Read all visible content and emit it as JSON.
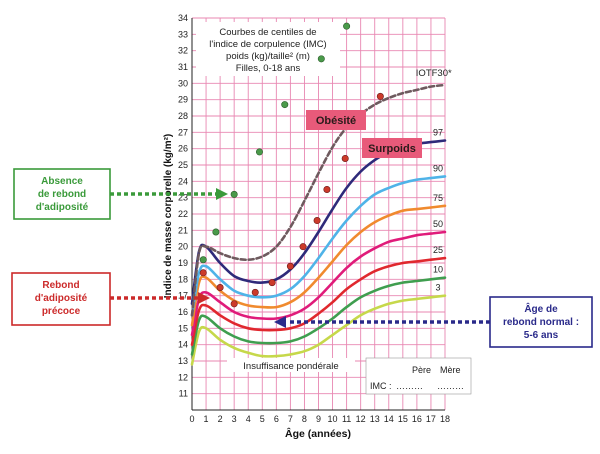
{
  "chart_data": {
    "type": "line",
    "title": [
      "Courbes de centiles de",
      "l'indice de corpulence (IMC)",
      "poids (kg)/taille² (m)",
      "Filles, 0-18 ans"
    ],
    "xlabel": "Âge (années)",
    "ylabel": "Indice de masse corporelle (kg/m²)",
    "xlim": [
      0,
      18
    ],
    "ylim": [
      10,
      34
    ],
    "x_ticks": [
      "0",
      "1",
      "2",
      "3",
      "4",
      "5",
      "6",
      "7",
      "8",
      "9",
      "10",
      "11",
      "12",
      "13",
      "14",
      "15",
      "16",
      "17",
      "18"
    ],
    "y_ticks": [
      "11",
      "12",
      "13",
      "14",
      "15",
      "16",
      "17",
      "18",
      "19",
      "20",
      "21",
      "22",
      "23",
      "24",
      "25",
      "26",
      "27",
      "28",
      "29",
      "30",
      "31",
      "32",
      "33",
      "34"
    ],
    "grid": true,
    "series": [
      {
        "name": "IOTF30*",
        "color": "#6e5a5e",
        "style": "dashed",
        "x": [
          0,
          0.5,
          1,
          2,
          3,
          4,
          5,
          6,
          7,
          8,
          9,
          10,
          11,
          12,
          13,
          14,
          15,
          16,
          17,
          18
        ],
        "y": [
          15.8,
          19.6,
          20.0,
          19.6,
          19.3,
          19.2,
          19.4,
          20.0,
          21.2,
          22.8,
          24.5,
          26.1,
          27.3,
          28.1,
          28.7,
          29.1,
          29.4,
          29.6,
          29.8,
          29.9
        ]
      },
      {
        "name": "97",
        "color": "#2e2a7a",
        "x": [
          0,
          0.5,
          1,
          2,
          3,
          4,
          5,
          6,
          7,
          8,
          9,
          10,
          11,
          12,
          13,
          14,
          15,
          16,
          17,
          18
        ],
        "y": [
          16.5,
          19.7,
          20.0,
          19.0,
          18.2,
          17.9,
          17.8,
          18.0,
          18.6,
          19.6,
          20.9,
          22.3,
          23.6,
          24.6,
          25.3,
          25.8,
          26.1,
          26.3,
          26.4,
          26.5
        ]
      },
      {
        "name": "90",
        "color": "#4fb3e8",
        "x": [
          0,
          0.5,
          1,
          2,
          3,
          4,
          5,
          6,
          7,
          8,
          9,
          10,
          11,
          12,
          13,
          14,
          15,
          16,
          17,
          18
        ],
        "y": [
          15.8,
          18.4,
          18.8,
          18.0,
          17.3,
          17.0,
          16.9,
          17.0,
          17.4,
          18.2,
          19.3,
          20.5,
          21.6,
          22.5,
          23.2,
          23.6,
          23.9,
          24.1,
          24.2,
          24.3
        ]
      },
      {
        "name": "75",
        "color": "#f08a2e",
        "x": [
          0,
          0.5,
          1,
          2,
          3,
          4,
          5,
          6,
          7,
          8,
          9,
          10,
          11,
          12,
          13,
          14,
          15,
          16,
          17,
          18
        ],
        "y": [
          15.2,
          17.8,
          18.1,
          17.3,
          16.7,
          16.4,
          16.3,
          16.3,
          16.6,
          17.2,
          18.1,
          19.1,
          20.1,
          20.9,
          21.5,
          21.9,
          22.2,
          22.3,
          22.4,
          22.5
        ]
      },
      {
        "name": "50",
        "color": "#e01b7a",
        "x": [
          0,
          0.5,
          1,
          2,
          3,
          4,
          5,
          6,
          7,
          8,
          9,
          10,
          11,
          12,
          13,
          14,
          15,
          16,
          17,
          18
        ],
        "y": [
          14.6,
          16.8,
          17.2,
          16.6,
          16.0,
          15.7,
          15.6,
          15.6,
          15.8,
          16.2,
          16.9,
          17.8,
          18.7,
          19.4,
          19.9,
          20.3,
          20.5,
          20.7,
          20.8,
          20.9
        ]
      },
      {
        "name": "25",
        "color": "#e0282e",
        "x": [
          0,
          0.5,
          1,
          2,
          3,
          4,
          5,
          6,
          7,
          8,
          9,
          10,
          11,
          12,
          13,
          14,
          15,
          16,
          17,
          18
        ],
        "y": [
          14.0,
          16.1,
          16.4,
          15.8,
          15.3,
          15.0,
          14.9,
          14.9,
          15.0,
          15.3,
          15.9,
          16.6,
          17.4,
          18.0,
          18.5,
          18.8,
          19.0,
          19.1,
          19.2,
          19.3
        ]
      },
      {
        "name": "10",
        "color": "#3f9e4f",
        "x": [
          0,
          0.5,
          1,
          2,
          3,
          4,
          5,
          6,
          7,
          8,
          9,
          10,
          11,
          12,
          13,
          14,
          15,
          16,
          17,
          18
        ],
        "y": [
          13.4,
          15.5,
          15.7,
          15.0,
          14.5,
          14.2,
          14.1,
          14.1,
          14.2,
          14.5,
          15.0,
          15.6,
          16.3,
          16.9,
          17.3,
          17.6,
          17.8,
          17.9,
          18.0,
          18.1
        ]
      },
      {
        "name": "3",
        "color": "#c6d84a",
        "x": [
          0,
          0.5,
          1,
          2,
          3,
          4,
          5,
          6,
          7,
          8,
          9,
          10,
          11,
          12,
          13,
          14,
          15,
          16,
          17,
          18
        ],
        "y": [
          12.8,
          14.8,
          15.0,
          14.3,
          13.8,
          13.5,
          13.3,
          13.3,
          13.4,
          13.6,
          14.0,
          14.6,
          15.2,
          15.8,
          16.2,
          16.5,
          16.7,
          16.8,
          16.9,
          17.0
        ]
      }
    ],
    "points_green": {
      "x": [
        0.8,
        1.7,
        3.0,
        4.8,
        6.6,
        9.2,
        11.0
      ],
      "y": [
        19.2,
        20.9,
        23.2,
        25.8,
        28.7,
        31.5,
        33.5
      ]
    },
    "points_red": {
      "x": [
        0.8,
        2.0,
        3.0,
        4.5,
        5.7,
        7.0,
        7.9,
        8.9,
        9.6,
        10.9,
        12.0,
        13.4
      ],
      "y": [
        18.4,
        17.5,
        16.5,
        17.2,
        17.8,
        18.8,
        20.0,
        21.6,
        23.5,
        25.4,
        27.6,
        29.2
      ]
    },
    "zone_labels": {
      "obesite": "Obésité",
      "surpoids": "Surpoids",
      "insuffisance": "Insuffisance pondérale"
    },
    "imc_table": {
      "pere": "Père",
      "mere": "Mère",
      "imc": "IMC :",
      "dots1": "………",
      "dots2": "………"
    },
    "annotations": {
      "absence": [
        "Absence",
        "de rebond",
        "d'adiposité"
      ],
      "precoce": [
        "Rebond",
        "d'adiposité",
        "précoce"
      ],
      "normal": [
        "Âge de",
        "rebond normal :",
        "5-6 ans"
      ]
    }
  },
  "colors": {
    "grid": "#e887b2",
    "green_point": "#4a9a4a",
    "red_point": "#cc3a2a",
    "label_box": "#e85a7a",
    "annot_green": "#3a9a3a",
    "annot_red": "#cc2a2a",
    "annot_blue": "#2a2a8a"
  }
}
